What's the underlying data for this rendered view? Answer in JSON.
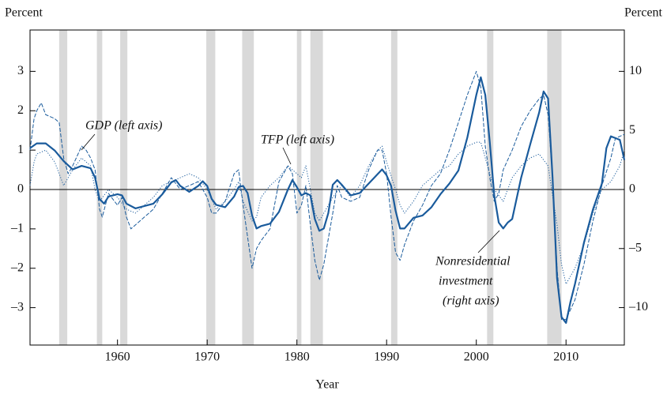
{
  "chart_data": {
    "type": "line",
    "xlabel": "Year",
    "ylabel": "Percent",
    "y2label": "Percent",
    "xlim": [
      1950.25,
      2016.5
    ],
    "xticks": [
      1960,
      1970,
      1980,
      1990,
      2000,
      2010
    ],
    "ylim": [
      -3.95,
      4.05
    ],
    "yticks": [
      {
        "value": -3,
        "label": "–3"
      },
      {
        "value": -2,
        "label": "–2"
      },
      {
        "value": -1,
        "label": "–1"
      },
      0,
      1,
      2,
      3
    ],
    "y2lim": [
      -13.17,
      13.5
    ],
    "y2ticks": [
      {
        "value": -10,
        "label": "–10"
      },
      {
        "value": -5,
        "label": "–5"
      },
      0,
      5,
      10
    ],
    "zero_line": true,
    "recession_color": "#d9d9d9",
    "recessions": [
      [
        1953.5,
        1954.4
      ],
      [
        1957.7,
        1958.3
      ],
      [
        1960.3,
        1961.1
      ],
      [
        1969.9,
        1970.9
      ],
      [
        1973.9,
        1975.2
      ],
      [
        1980.0,
        1980.5
      ],
      [
        1981.5,
        1982.9
      ],
      [
        1990.5,
        1991.2
      ],
      [
        2001.2,
        2001.9
      ],
      [
        2007.9,
        2009.5
      ]
    ],
    "annotations": [
      {
        "lines": [
          "GDP (left axis)"
        ]
      },
      {
        "lines": [
          "TFP (left axis)"
        ]
      },
      {
        "lines": [
          "Nonresidential",
          "investment",
          "(right axis)"
        ]
      }
    ],
    "series": [
      {
        "name": "GDP",
        "style": "dashed",
        "color": "#1a5b9c",
        "x": [
          1950.25,
          1950.7,
          1951,
          1951.5,
          1952,
          1953,
          1953.5,
          1954,
          1954.5,
          1955,
          1956,
          1956.5,
          1957,
          1957.5,
          1958,
          1958.3,
          1959,
          1960,
          1960.5,
          1961,
          1961.5,
          1962,
          1963,
          1964,
          1965,
          1966,
          1967,
          1968,
          1969,
          1970,
          1970.5,
          1971,
          1972,
          1973,
          1973.5,
          1974,
          1974.5,
          1975,
          1975.5,
          1976,
          1977,
          1978,
          1979,
          1979.5,
          1980,
          1980.5,
          1981,
          1981.5,
          1982,
          1982.5,
          1983,
          1984,
          1984.5,
          1985,
          1986,
          1987,
          1988,
          1989,
          1989.5,
          1990,
          1990.5,
          1991,
          1991.5,
          1992,
          1993,
          1994,
          1995,
          1996,
          1997,
          1998,
          1999,
          2000,
          2000.5,
          2001,
          2001.5,
          2002,
          2002.5,
          2003,
          2004,
          2005,
          2006,
          2007,
          2007.5,
          2008,
          2008.5,
          2009,
          2009.5,
          2010,
          2011,
          2012,
          2013,
          2014,
          2015,
          2015.5,
          2016.5
        ],
        "values": [
          1.0,
          1.8,
          2.0,
          2.2,
          1.9,
          1.8,
          1.7,
          0.8,
          0.4,
          0.6,
          1.1,
          1.0,
          0.8,
          0.5,
          -0.5,
          -0.7,
          -0.1,
          -0.4,
          -0.2,
          -0.7,
          -1.0,
          -0.9,
          -0.7,
          -0.5,
          -0.1,
          0.3,
          0.0,
          0.1,
          0.2,
          -0.2,
          -0.6,
          -0.6,
          -0.3,
          0.4,
          0.5,
          -0.4,
          -1.2,
          -2.0,
          -1.5,
          -1.3,
          -1.0,
          0.2,
          0.6,
          0.4,
          -0.6,
          -0.4,
          0.1,
          -0.9,
          -1.8,
          -2.3,
          -1.9,
          -0.6,
          0.1,
          -0.2,
          -0.3,
          -0.2,
          0.5,
          1.0,
          1.0,
          0.4,
          -0.7,
          -1.6,
          -1.8,
          -1.4,
          -0.8,
          -0.4,
          0.1,
          0.4,
          1.0,
          1.7,
          2.4,
          3.0,
          2.6,
          1.1,
          0.3,
          -0.3,
          -0.1,
          0.5,
          1.0,
          1.6,
          2.0,
          2.3,
          2.4,
          1.9,
          0.3,
          -2.0,
          -3.3,
          -3.3,
          -2.8,
          -1.9,
          -0.8,
          0.1,
          0.8,
          1.3,
          1.4
        ]
      },
      {
        "name": "TFP",
        "style": "dotted",
        "color": "#1a5b9c",
        "x": [
          1950.25,
          1950.7,
          1951,
          1952,
          1953,
          1954,
          1955,
          1956,
          1957,
          1957.5,
          1958,
          1959,
          1960,
          1961,
          1962,
          1963,
          1964,
          1965,
          1966,
          1967,
          1968,
          1969,
          1970,
          1971,
          1972,
          1973,
          1973.5,
          1974,
          1975,
          1975.5,
          1976,
          1977,
          1978,
          1979,
          1980,
          1980.5,
          1981,
          1982,
          1982.5,
          1983,
          1984,
          1985,
          1986,
          1987,
          1988,
          1989,
          1989.5,
          1990,
          1991,
          1991.5,
          1992,
          1993,
          1994,
          1995,
          1996,
          1997,
          1998,
          1999,
          2000,
          2000.5,
          2001,
          2002,
          2003,
          2004,
          2005,
          2006,
          2007,
          2008,
          2009,
          2009.5,
          2010,
          2011,
          2012,
          2013,
          2014,
          2015,
          2016,
          2016.5
        ],
        "values": [
          0.1,
          0.7,
          0.9,
          1.0,
          0.7,
          0.1,
          0.5,
          0.8,
          0.6,
          0.0,
          -0.3,
          0.0,
          -0.2,
          -0.5,
          -0.6,
          -0.4,
          -0.2,
          0.1,
          0.2,
          0.3,
          0.4,
          0.3,
          0.0,
          -0.5,
          -0.3,
          0.0,
          0.2,
          -0.3,
          -0.8,
          -0.7,
          -0.2,
          0.1,
          0.3,
          0.6,
          0.4,
          0.3,
          0.6,
          -0.6,
          -0.8,
          -0.6,
          -0.2,
          0.1,
          -0.2,
          0.1,
          0.6,
          1.0,
          1.1,
          0.7,
          0.0,
          -0.4,
          -0.6,
          -0.3,
          0.1,
          0.3,
          0.5,
          0.6,
          0.9,
          1.1,
          1.2,
          1.2,
          0.8,
          0.0,
          -0.3,
          0.3,
          0.6,
          0.8,
          0.9,
          0.6,
          -0.9,
          -1.9,
          -2.4,
          -2.0,
          -1.4,
          -0.6,
          0.0,
          0.2,
          0.6,
          1.0
        ]
      },
      {
        "name": "Nonresidential investment",
        "style": "solid",
        "color": "#1a5b9c",
        "axis": "y2",
        "x": [
          1950.25,
          1951,
          1952,
          1953,
          1954,
          1955,
          1956,
          1957,
          1957.5,
          1958,
          1958.5,
          1959,
          1960,
          1960.5,
          1961,
          1962,
          1963,
          1964,
          1965,
          1966,
          1966.5,
          1967,
          1968,
          1969,
          1969.5,
          1970,
          1970.5,
          1971,
          1972,
          1973,
          1973.5,
          1974,
          1974.5,
          1975,
          1975.5,
          1976,
          1977,
          1978,
          1979,
          1979.5,
          1980,
          1980.5,
          1981,
          1981.5,
          1982,
          1982.5,
          1983,
          1983.5,
          1984,
          1984.5,
          1985,
          1986,
          1987,
          1988,
          1989,
          1989.5,
          1990,
          1990.5,
          1991,
          1991.5,
          1992,
          1993,
          1994,
          1995,
          1996,
          1997,
          1998,
          1999,
          2000,
          2000.5,
          2001,
          2001.5,
          2002,
          2002.5,
          2003,
          2003.5,
          2004,
          2005,
          2006,
          2007,
          2007.5,
          2008,
          2008.5,
          2009,
          2009.5,
          2010,
          2010.5,
          2011,
          2012,
          2013,
          2014,
          2014.5,
          2015,
          2016,
          2016.5
        ],
        "values": [
          3.5,
          3.9,
          3.9,
          3.3,
          2.4,
          1.7,
          2.0,
          1.8,
          1.0,
          -0.8,
          -1.2,
          -0.6,
          -0.4,
          -0.5,
          -1.2,
          -1.6,
          -1.4,
          -1.2,
          -0.4,
          0.6,
          0.8,
          0.3,
          -0.2,
          0.3,
          0.7,
          0.3,
          -0.8,
          -1.3,
          -1.5,
          -0.6,
          0.2,
          0.3,
          -0.3,
          -2.2,
          -3.3,
          -3.1,
          -2.9,
          -1.9,
          0.0,
          0.8,
          0.2,
          -0.5,
          -0.3,
          -0.5,
          -2.5,
          -3.5,
          -3.3,
          -2.0,
          0.4,
          0.8,
          0.4,
          -0.5,
          -0.3,
          0.5,
          1.3,
          1.7,
          1.2,
          0.3,
          -1.8,
          -3.3,
          -3.3,
          -2.4,
          -2.2,
          -1.5,
          -0.4,
          0.5,
          1.6,
          4.4,
          8.0,
          9.5,
          8.0,
          4.0,
          -0.5,
          -2.8,
          -3.3,
          -2.8,
          -2.5,
          1.0,
          3.8,
          6.5,
          8.3,
          7.7,
          1.0,
          -7.5,
          -10.8,
          -11.3,
          -9.5,
          -8.0,
          -4.5,
          -1.7,
          0.5,
          3.5,
          4.5,
          4.2,
          2.5
        ]
      }
    ]
  }
}
